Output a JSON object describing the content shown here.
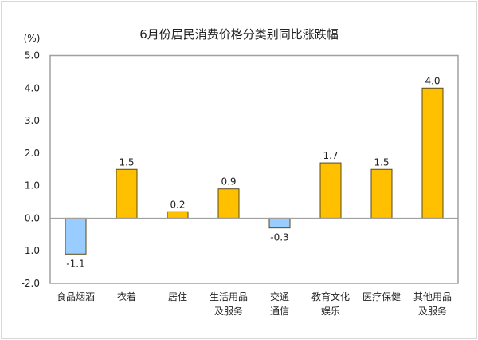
{
  "chart_data": {
    "type": "bar",
    "title": "6月份居民消费价格分类别同比涨跌幅",
    "ylabel": "(%)",
    "xlabel": "",
    "categories": [
      [
        "食品烟酒"
      ],
      [
        "衣着"
      ],
      [
        "居住"
      ],
      [
        "生活用品",
        "及服务"
      ],
      [
        "交通",
        "通信"
      ],
      [
        "教育文化",
        "娱乐"
      ],
      [
        "医疗保健"
      ],
      [
        "其他用品",
        "及服务"
      ]
    ],
    "values": [
      -1.1,
      1.5,
      0.2,
      0.9,
      -0.3,
      1.7,
      1.5,
      4.0
    ],
    "data_labels": [
      "-1.1",
      "1.5",
      "0.2",
      "0.9",
      "-0.3",
      "1.7",
      "1.5",
      "4.0"
    ],
    "ylim": [
      -2.0,
      5.0
    ],
    "yticks": [
      "5.0",
      "4.0",
      "3.0",
      "2.0",
      "1.0",
      "0.0",
      "-1.0",
      "-2.0"
    ],
    "ytick_values": [
      5,
      4,
      3,
      2,
      1,
      0,
      -1,
      -2
    ],
    "grid": false,
    "legend": "none",
    "colors": {
      "positive": "#FFC000",
      "negative": "#99CCFF",
      "bar_border": "#5a4a1a",
      "axis": "#a0a0a0"
    }
  }
}
